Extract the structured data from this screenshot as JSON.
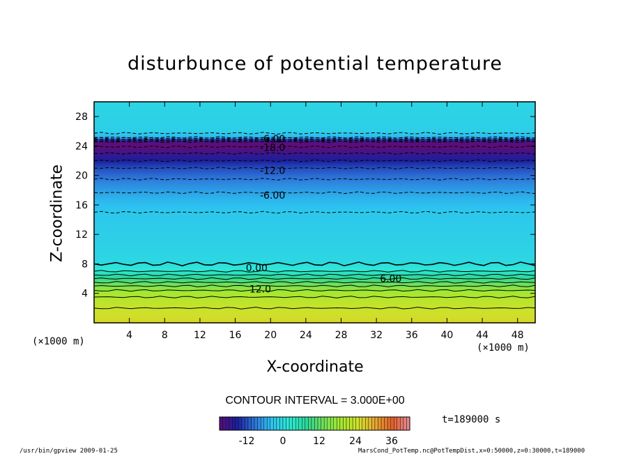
{
  "chart_data": {
    "type": "heatmap",
    "title": "disturbunce of potential temperature",
    "xlabel": "X-coordinate",
    "ylabel": "Z-coordinate",
    "x_unit": "(×1000 m)",
    "y_unit": "(×1000 m)",
    "xlim": [
      0,
      50
    ],
    "ylim": [
      0,
      30
    ],
    "x_ticks": [
      4,
      8,
      12,
      16,
      20,
      24,
      28,
      32,
      36,
      40,
      44,
      48
    ],
    "y_ticks": [
      4,
      8,
      12,
      16,
      20,
      24,
      28
    ],
    "contour_interval": "CONTOUR INTERVAL = 3.000E+00",
    "contour_labels": [
      {
        "text": "-6.00",
        "x": 18.8,
        "z": 25.0
      },
      {
        "text": "-18.0",
        "x": 18.8,
        "z": 23.8
      },
      {
        "text": "-12.0",
        "x": 18.8,
        "z": 20.7
      },
      {
        "text": "-6.00",
        "x": 18.8,
        "z": 17.3
      },
      {
        "text": "0.00",
        "x": 17.2,
        "z": 7.5
      },
      {
        "text": "6.00",
        "x": 32.4,
        "z": 6.0
      },
      {
        "text": "12.0",
        "x": 17.6,
        "z": 4.6
      }
    ],
    "vertical_profile": [
      {
        "z": 0,
        "value": 26
      },
      {
        "z": 2,
        "value": 24
      },
      {
        "z": 4,
        "value": 20
      },
      {
        "z": 5,
        "value": 15
      },
      {
        "z": 6,
        "value": 9
      },
      {
        "z": 7,
        "value": 3
      },
      {
        "z": 8,
        "value": 0
      },
      {
        "z": 9,
        "value": -1
      },
      {
        "z": 12,
        "value": -2
      },
      {
        "z": 15,
        "value": -3
      },
      {
        "z": 17,
        "value": -5
      },
      {
        "z": 19,
        "value": -8
      },
      {
        "z": 21,
        "value": -12
      },
      {
        "z": 23,
        "value": -18
      },
      {
        "z": 24.5,
        "value": -23
      },
      {
        "z": 25.2,
        "value": -5
      },
      {
        "z": 26,
        "value": -2
      },
      {
        "z": 30,
        "value": -1
      }
    ],
    "colorbar": {
      "min": -21,
      "max": 42,
      "ticks": [
        -12,
        0,
        12,
        24,
        36
      ],
      "colors": [
        "#5b0f7a",
        "#1c1e9c",
        "#2d73d8",
        "#2dc2f0",
        "#2de8d6",
        "#2bd89a",
        "#6ee05a",
        "#a4e830",
        "#cfe02a",
        "#e8a830",
        "#e0602a",
        "#e88a9a"
      ]
    },
    "time_label": "t=189000 s"
  },
  "footer": {
    "left": "/usr/bin/gpview  2009-01-25",
    "right": "MarsCond_PotTemp.nc@PotTempDist,x=0:50000,z=0:30000,t=189000"
  }
}
